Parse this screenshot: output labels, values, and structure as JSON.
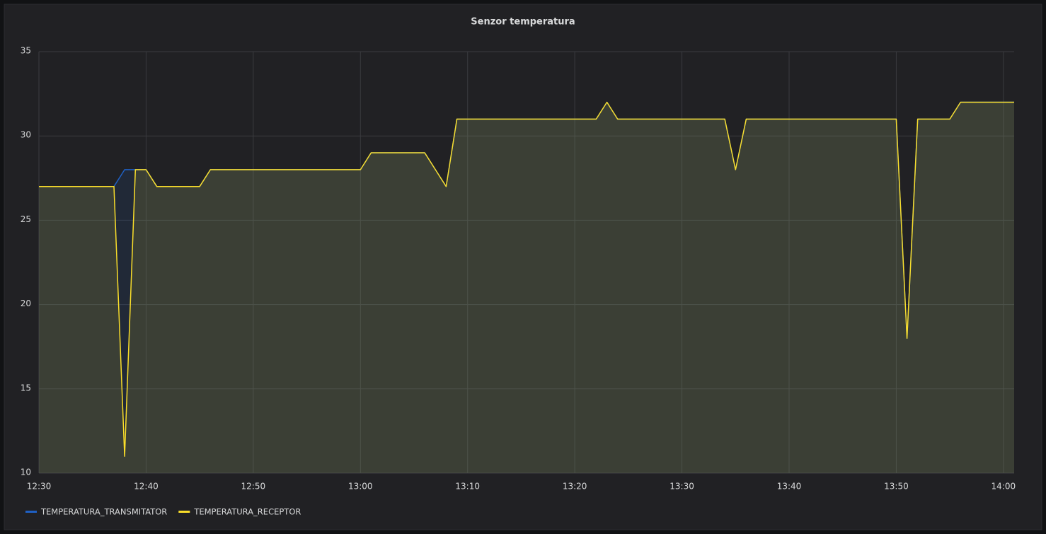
{
  "chart_data": {
    "type": "line",
    "title": "Senzor temperatura",
    "x": [
      "12:30",
      "12:37",
      "12:38",
      "12:39",
      "12:40",
      "12:41",
      "12:45",
      "12:46",
      "13:00",
      "13:01",
      "13:06",
      "13:08",
      "13:09",
      "13:22",
      "13:23",
      "13:24",
      "13:34",
      "13:35",
      "13:36",
      "13:50",
      "13:51",
      "13:52",
      "13:55",
      "13:56",
      "14:01"
    ],
    "series": [
      {
        "name": "TEMPERATURA_TRANSMITATOR",
        "color": "#1f60c4",
        "values": [
          27,
          27,
          28,
          28,
          28,
          27,
          27,
          28,
          28,
          29,
          29,
          27,
          31,
          31,
          32,
          31,
          31,
          28,
          31,
          31,
          18,
          31,
          31,
          32,
          32
        ]
      },
      {
        "name": "TEMPERATURA_RECEPTOR",
        "color": "#fade2a",
        "values": [
          27,
          27,
          11,
          28,
          28,
          27,
          27,
          28,
          28,
          29,
          29,
          27,
          31,
          31,
          32,
          31,
          31,
          28,
          31,
          31,
          18,
          31,
          31,
          32,
          32
        ]
      }
    ],
    "xlim": [
      "12:30",
      "14:01"
    ],
    "xticks": [
      "12:30",
      "12:40",
      "12:50",
      "13:00",
      "13:10",
      "13:20",
      "13:30",
      "13:40",
      "13:50",
      "14:00"
    ],
    "ylim": [
      10,
      35
    ],
    "yticks": [
      10,
      15,
      20,
      25,
      30,
      35
    ],
    "grid": true,
    "fill": true
  }
}
